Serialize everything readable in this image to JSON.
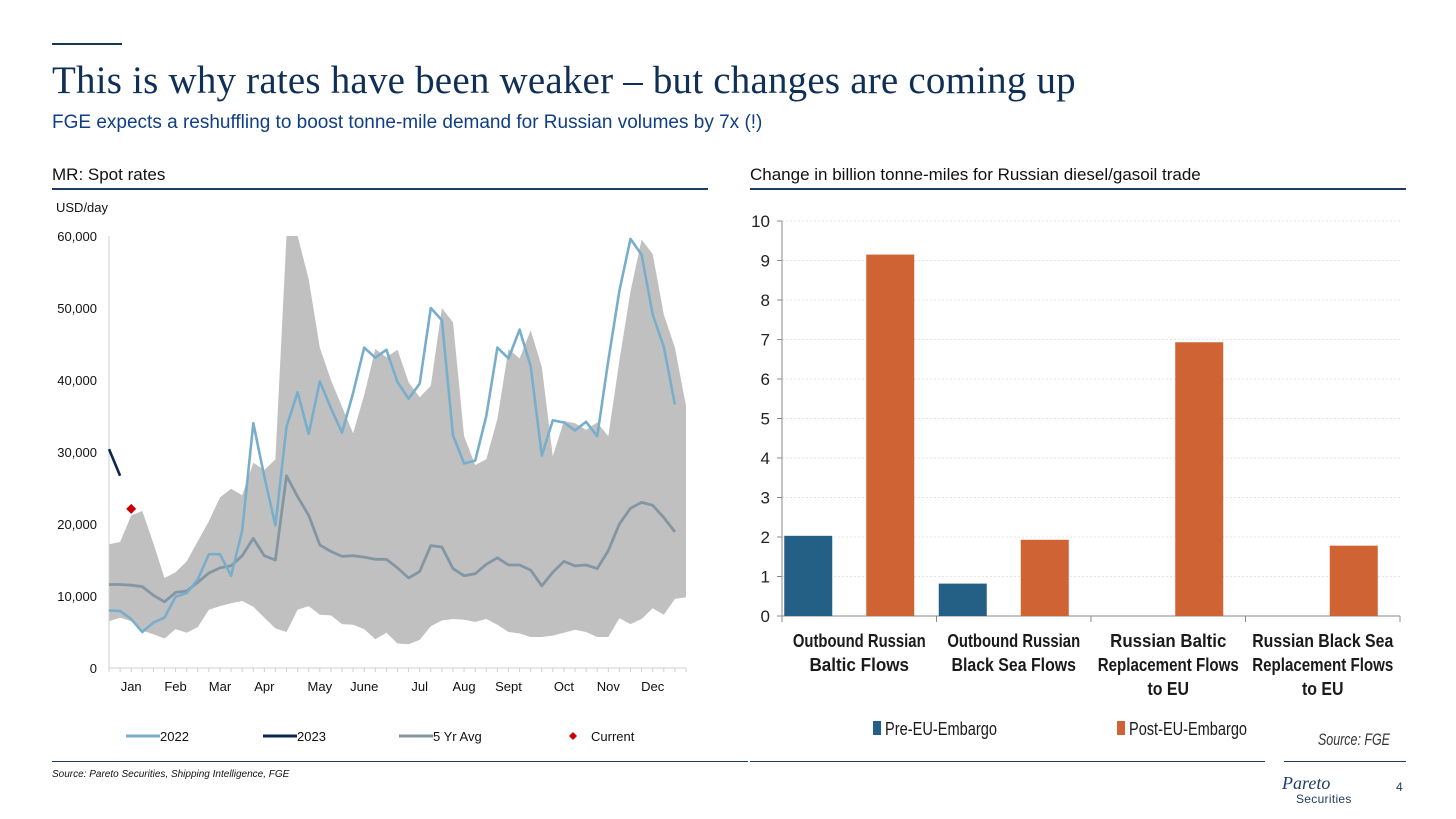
{
  "header": {
    "title": "This is why rates have been weaker – but changes are coming up",
    "subtitle": "FGE expects a reshuffling to boost tonne-mile demand for Russian volumes by 7x (!)"
  },
  "left_panel": {
    "title": "MR: Spot rates"
  },
  "right_panel": {
    "title": "Change in billion tonne-miles for Russian diesel/gasoil trade"
  },
  "footer": {
    "source": "Source: Pareto Securities, Shipping Intelligence, FGE",
    "logo_top": "Pareto",
    "logo_bottom": "Securities",
    "page_number": "4"
  },
  "colors": {
    "navy": "#0f2f57",
    "band": "#c0c0c0",
    "line_2022": "#78aecb",
    "line_2023": "#0b2752",
    "line_avg": "#8396a4",
    "current": "#cc0000",
    "pre_embargo": "#245f86",
    "post_embargo": "#cf6333"
  },
  "chart_data": [
    {
      "type": "line",
      "title": "MR: Spot rates",
      "ylabel": "USD/day",
      "ylim": [
        0,
        60000
      ],
      "yticks": [
        0,
        10000,
        20000,
        30000,
        40000,
        50000,
        60000
      ],
      "ytick_labels": [
        "0",
        "10,000",
        "20,000",
        "30,000",
        "40,000",
        "50,000",
        "60,000"
      ],
      "x_range": [
        0,
        52
      ],
      "x_tick_positions": [
        2,
        6,
        10,
        14,
        19,
        23,
        28,
        32,
        36,
        41,
        45,
        49
      ],
      "x_tick_labels": [
        "Jan",
        "Feb",
        "Mar",
        "Apr",
        "May",
        "June",
        "Jul",
        "Aug",
        "Sept",
        "Oct",
        "Nov",
        "Dec"
      ],
      "band": {
        "name": "5 Yr range",
        "upper": [
          17200,
          17500,
          21200,
          21800,
          17300,
          12500,
          13300,
          14800,
          17600,
          20400,
          23700,
          24900,
          24000,
          28500,
          27500,
          29000,
          60000,
          60000,
          54000,
          44500,
          40000,
          36300,
          32600,
          37900,
          44300,
          43200,
          44200,
          39700,
          37600,
          39200,
          50000,
          48000,
          32200,
          28200,
          29000,
          34600,
          44300,
          43000,
          46900,
          41800,
          29400,
          34300,
          34000,
          33100,
          34100,
          32200,
          42700,
          52300,
          59500,
          57500,
          49100,
          44500,
          36400
        ],
        "lower": [
          6500,
          7000,
          6500,
          5200,
          4700,
          4100,
          5400,
          4900,
          5700,
          8100,
          8600,
          9000,
          9300,
          8500,
          7000,
          5500,
          5000,
          8100,
          8600,
          7400,
          7300,
          6100,
          6000,
          5400,
          4000,
          4900,
          3400,
          3300,
          3900,
          5800,
          6600,
          6800,
          6700,
          6400,
          6800,
          6000,
          5000,
          4800,
          4300,
          4300,
          4500,
          4900,
          5300,
          5000,
          4300,
          4300,
          6900,
          6100,
          6800,
          8300,
          7400,
          9600,
          9800
        ]
      },
      "series": [
        {
          "name": "2022",
          "values": [
            8000,
            7900,
            6800,
            5000,
            6300,
            7000,
            9900,
            10400,
            12300,
            15800,
            15800,
            12800,
            19100,
            34000,
            26600,
            19800,
            33500,
            38300,
            32500,
            39800,
            36100,
            32700,
            38200,
            44500,
            43100,
            44200,
            39700,
            37400,
            39500,
            50000,
            48300,
            32300,
            28400,
            28800,
            35000,
            44500,
            43000,
            47000,
            41900,
            29500,
            34400,
            34100,
            33000,
            34200,
            32200,
            42700,
            52400,
            59600,
            57400,
            49100,
            44600,
            36600
          ]
        },
        {
          "name": "2023",
          "values": [
            30400,
            26700
          ]
        },
        {
          "name": "5 Yr Avg",
          "values": [
            11600,
            11600,
            11500,
            11300,
            10100,
            9200,
            10500,
            10700,
            11900,
            13200,
            13900,
            14200,
            15600,
            18000,
            15600,
            15000,
            26700,
            23800,
            21200,
            17100,
            16200,
            15500,
            15600,
            15400,
            15100,
            15100,
            13900,
            12500,
            13400,
            17000,
            16800,
            13800,
            12800,
            13100,
            14400,
            15300,
            14300,
            14300,
            13600,
            11400,
            13300,
            14800,
            14200,
            14300,
            13800,
            16300,
            20000,
            22200,
            23000,
            22600,
            20900,
            18900
          ]
        }
      ],
      "current": {
        "name": "Current",
        "x": 2,
        "value": 22100
      },
      "legend": [
        "2022",
        "2023",
        "5 Yr Avg",
        "Current"
      ],
      "legend_position": "bottom"
    },
    {
      "type": "bar",
      "title": "Change in billion tonne-miles for Russian diesel/gasoil trade",
      "categories": [
        [
          "Outbound Russian",
          "Baltic Flows"
        ],
        [
          "Outbound Russian",
          "Black Sea Flows"
        ],
        [
          "Russian Baltic",
          "Replacement Flows",
          "to EU"
        ],
        [
          "Russian Black Sea",
          "Replacement Flows",
          "to EU"
        ]
      ],
      "series": [
        {
          "name": "Pre-EU-Embargo",
          "values": [
            2.03,
            0.82,
            0,
            0
          ]
        },
        {
          "name": "Post-EU-Embargo",
          "values": [
            9.15,
            1.93,
            6.93,
            1.78
          ]
        }
      ],
      "ylim": [
        0,
        10
      ],
      "yticks": [
        "0",
        "1",
        "2",
        "3",
        "4",
        "5",
        "6",
        "7",
        "8",
        "9",
        "10"
      ],
      "legend_position": "bottom",
      "source": "Source: FGE"
    }
  ]
}
